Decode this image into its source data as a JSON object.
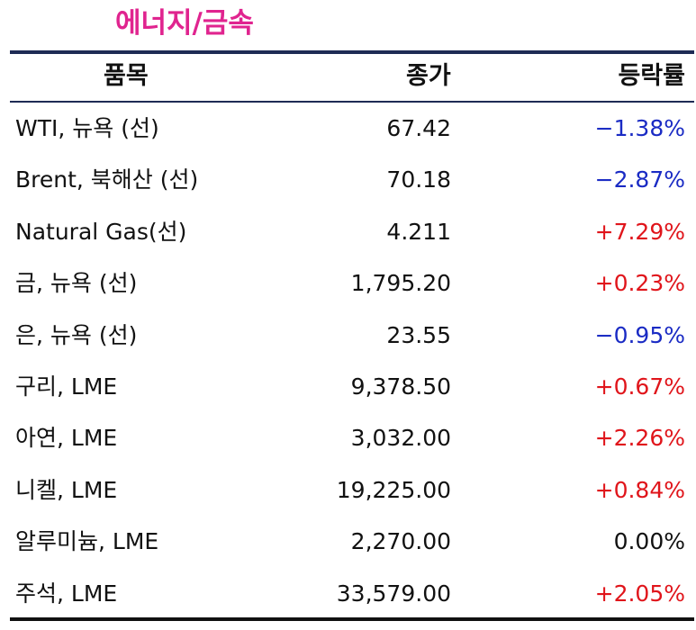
{
  "title": "에너지/금속",
  "header": {
    "item": "품목",
    "close": "종가",
    "change": "등락률"
  },
  "rows": [
    {
      "item": "WTI, 뉴욕 (선)",
      "close": "67.42",
      "change": "−1.38%",
      "color": "#1a2bc4"
    },
    {
      "item": "Brent, 북해산 (선)",
      "close": "70.18",
      "change": "−2.87%",
      "color": "#1a2bc4"
    },
    {
      "item": "Natural Gas(선)",
      "close": "4.211",
      "change": "+7.29%",
      "color": "#e0151b"
    },
    {
      "item": "금, 뉴욕  (선)",
      "close": "1,795.20",
      "change": "+0.23%",
      "color": "#e0151b"
    },
    {
      "item": "은, 뉴욕  (선)",
      "close": "23.55",
      "change": "−0.95%",
      "color": "#1a2bc4"
    },
    {
      "item": "구리, LME",
      "close": "9,378.50",
      "change": "+0.67%",
      "color": "#e0151b"
    },
    {
      "item": "아연, LME",
      "close": "3,032.00",
      "change": "+2.26%",
      "color": "#e0151b"
    },
    {
      "item": "니켈, LME",
      "close": "19,225.00",
      "change": "+0.84%",
      "color": "#e0151b"
    },
    {
      "item": "알루미늄, LME",
      "close": "2,270.00",
      "change": "0.00%",
      "color": "#111111"
    },
    {
      "item": "주석, LME",
      "close": "33,579.00",
      "change": "+2.05%",
      "color": "#e0151b"
    }
  ]
}
